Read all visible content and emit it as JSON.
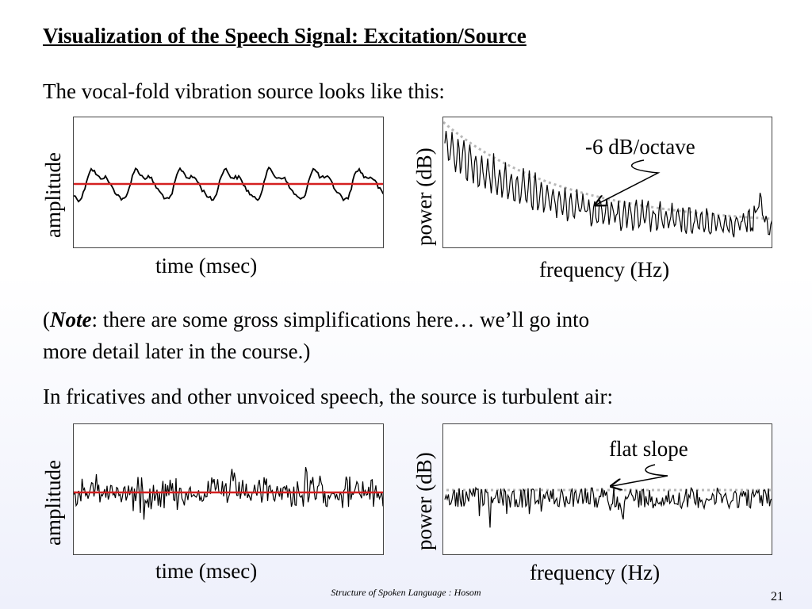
{
  "slide": {
    "title": "Visualization of the Speech Signal: Excitation/Source",
    "intro_voiced": "The vocal-fold vibration source looks like this:",
    "note_open": "(",
    "note_label": "Note",
    "note_line1": ": there are some gross simplifications here… we’ll go into",
    "note_line2": "more detail later in the course.)",
    "intro_unvoiced": "In fricatives and other unvoiced speech, the source is turbulent air:",
    "footer": "Structure of Spoken Language : Hosom",
    "page_number": "21"
  },
  "colors": {
    "signal": "#000000",
    "baseline": "#d42020",
    "envelope": "#b8b8b8",
    "border": "#444444"
  },
  "chart_data": [
    {
      "type": "line",
      "description_key": "voiced-waveform",
      "xlabel": "time (msec)",
      "ylabel": "amplitude",
      "periods": 7,
      "baseline": 0
    },
    {
      "type": "line",
      "description_key": "voiced-spectrum",
      "xlabel": "frequency (Hz)",
      "ylabel": "power (dB)",
      "annotation": "-6 dB/octave",
      "envelope": "decaying"
    },
    {
      "type": "line",
      "description_key": "unvoiced-waveform",
      "xlabel": "time (msec)",
      "ylabel": "amplitude",
      "baseline": 0
    },
    {
      "type": "line",
      "description_key": "unvoiced-spectrum",
      "xlabel": "frequency (Hz)",
      "ylabel": "power (dB)",
      "annotation": "flat slope",
      "envelope": "flat"
    }
  ]
}
